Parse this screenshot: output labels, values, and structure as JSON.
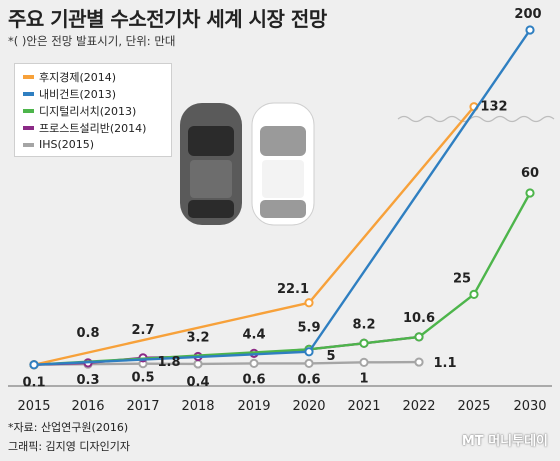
{
  "title": "주요 기관별 수소전기차 세계 시장 전망",
  "subtitle": "*(  )안은 전망 발표시기, 단위: 만대",
  "source": "*자료: 산업연구원(2016)",
  "credit": "그래픽: 김지영 디자인기자",
  "watermark": "MT 머니투데이",
  "chart_data": {
    "type": "line",
    "categories": [
      "2015",
      "2016",
      "2017",
      "2018",
      "2019",
      "2020",
      "2021",
      "2022",
      "2025",
      "2030"
    ],
    "series": [
      {
        "name": "후지경제(2014)",
        "color": "#f7a13a",
        "points": [
          [
            0,
            0.1
          ],
          [
            5,
            22.1
          ],
          [
            8,
            132
          ]
        ]
      },
      {
        "name": "내비건트(2013)",
        "color": "#2f7fc1",
        "points": [
          [
            0,
            0.1
          ],
          [
            5,
            5
          ],
          [
            9,
            200
          ]
        ]
      },
      {
        "name": "디지털리서치(2013)",
        "color": "#4db54b",
        "points": [
          [
            0,
            0.1
          ],
          [
            5,
            5.9
          ],
          [
            6,
            8.2
          ],
          [
            7,
            10.6
          ],
          [
            8,
            25
          ],
          [
            9,
            60
          ]
        ]
      },
      {
        "name": "프로스트설리반(2014)",
        "color": "#8b2a86",
        "points": [
          [
            0,
            0.1
          ],
          [
            1,
            0.8
          ],
          [
            2,
            2.7
          ],
          [
            3,
            3.2
          ],
          [
            4,
            4.4
          ],
          [
            5,
            5.9
          ],
          [
            6,
            8.2
          ],
          [
            7,
            10.6
          ]
        ]
      },
      {
        "name": "IHS(2015)",
        "color": "#a5a5a5",
        "points": [
          [
            0,
            0.1
          ],
          [
            1,
            0.3
          ],
          [
            2,
            0.5
          ],
          [
            3,
            0.4
          ],
          [
            4,
            0.6
          ],
          [
            5,
            0.6
          ],
          [
            6,
            1
          ],
          [
            7,
            1.1
          ]
        ]
      }
    ],
    "labels": [
      "0.1",
      "0.8",
      "2.7",
      "3.2",
      "4.4",
      "5.9",
      "8.2",
      "10.6",
      "0.3",
      "0.5",
      "1.8",
      "0.4",
      "0.6",
      "0.6",
      "1",
      "1.1",
      "22.1",
      "132",
      "200",
      "5",
      "25",
      "60"
    ],
    "y_axis": "broken scale"
  }
}
